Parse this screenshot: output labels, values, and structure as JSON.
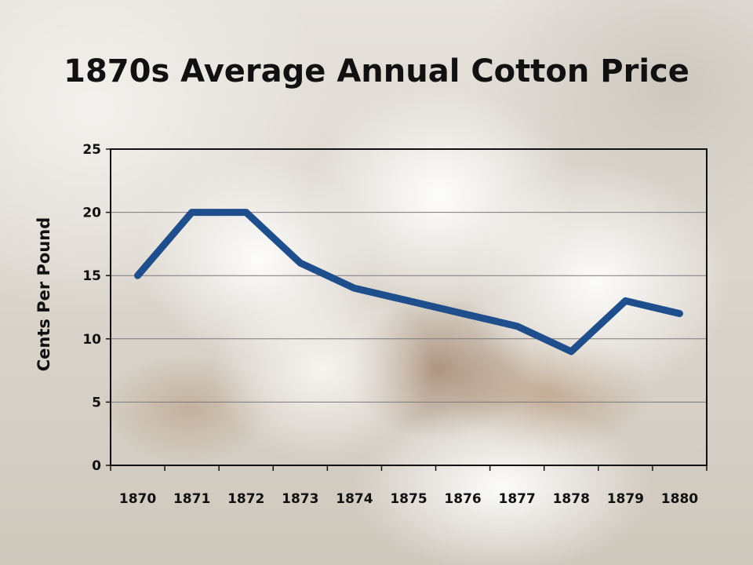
{
  "chart_data": {
    "type": "line",
    "title": "1870s Average Annual Cotton Price",
    "xlabel": "",
    "ylabel": "Cents Per Pound",
    "categories": [
      "1870",
      "1871",
      "1872",
      "1873",
      "1874",
      "1875",
      "1876",
      "1877",
      "1878",
      "1879",
      "1880"
    ],
    "series": [
      {
        "values": [
          15,
          20,
          20,
          16,
          14,
          13,
          12,
          11,
          9,
          13,
          12
        ],
        "color": "#1f4e8c"
      }
    ],
    "ylim": [
      0,
      25
    ],
    "yticks": [
      "0",
      "5",
      "10",
      "15",
      "20",
      "25"
    ],
    "grid": true,
    "legend": "none"
  }
}
